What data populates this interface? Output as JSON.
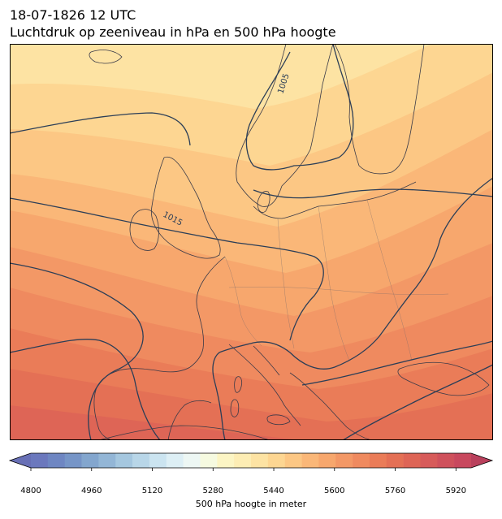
{
  "title": {
    "datetime": "18-07-1826 12 UTC",
    "subtitle": "Luchtdruk op zeeniveau in hPa en 500 hPa hoogte"
  },
  "map": {
    "region": "Europe",
    "projection": "conic",
    "filled_field": "500 hPa geopotential height (m)",
    "contour_field": "mean sea level pressure (hPa)",
    "isobar_labels": [
      "1005",
      "1015"
    ],
    "coastline_color": "#3a3a48",
    "isobar_color": "#2b3e57"
  },
  "colorbar": {
    "label": "500 hPa hoogte in meter",
    "ticks": [
      "4800",
      "4960",
      "5120",
      "5280",
      "5440",
      "5600",
      "5760",
      "5920"
    ],
    "min": 4800,
    "max": 5960,
    "step": 40,
    "extend": "both",
    "colors": [
      "#6b78bd",
      "#6e86c2",
      "#7695c7",
      "#83a6ce",
      "#93b6d6",
      "#a5c7df",
      "#b8d6e8",
      "#cbe4f0",
      "#ddeff5",
      "#edf7f4",
      "#f6fae0",
      "#fcf5c4",
      "#fdedb4",
      "#fde3a3",
      "#fdd692",
      "#fcc784",
      "#fab778",
      "#f7a76d",
      "#f39866",
      "#ef8a5f",
      "#ea7c58",
      "#e47055",
      "#de6556",
      "#d75b5a",
      "#cf515c",
      "#c8485e"
    ],
    "over_color": "#b9405c",
    "under_color": "#6870b6"
  },
  "chart_data": {
    "type": "heatmap",
    "title": "18-07-1826 12 UTC",
    "subtitle": "Luchtdruk op zeeniveau in hPa en 500 hPa hoogte",
    "colorbar_label": "500 hPa hoogte in meter",
    "colorbar_range": [
      4800,
      5960
    ],
    "colorbar_ticks": [
      4800,
      4960,
      5120,
      5280,
      5440,
      5600,
      5760,
      5920
    ],
    "isobar_labels": [
      1005,
      1015
    ]
  }
}
